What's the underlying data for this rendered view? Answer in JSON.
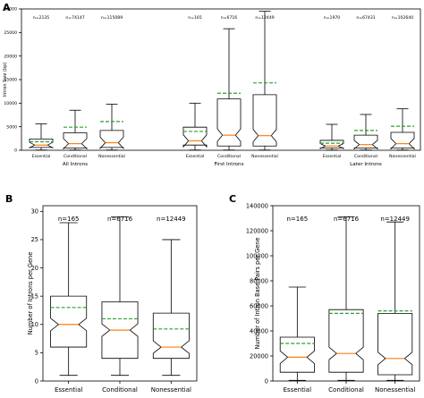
{
  "chart_data": [
    {
      "panel": "A",
      "type": "boxplot",
      "ylabel": "Intron Size (bp)",
      "ylim": [
        0,
        30000
      ],
      "yticks": [
        0,
        5000,
        10000,
        15000,
        20000,
        25000,
        30000
      ],
      "mean_color": "#2ca02c",
      "median_color": "#ff7f0e",
      "groups": [
        {
          "label": "All Introns",
          "boxes": [
            {
              "category": "Essential",
              "n": "n=2135",
              "min": 50,
              "q1": 600,
              "median": 1100,
              "q3": 2400,
              "max": 5600,
              "mean": 1800
            },
            {
              "category": "Conditional",
              "n": "n=74147",
              "min": 50,
              "q1": 500,
              "median": 1400,
              "q3": 3700,
              "max": 8500,
              "mean": 4900
            },
            {
              "category": "Nonessential",
              "n": "n=115089",
              "min": 50,
              "q1": 600,
              "median": 1600,
              "q3": 4200,
              "max": 9800,
              "mean": 6100
            }
          ]
        },
        {
          "label": "First Introns",
          "boxes": [
            {
              "category": "Essential",
              "n": "n=165",
              "min": 50,
              "q1": 1100,
              "median": 2000,
              "q3": 4900,
              "max": 10000,
              "mean": 4000
            },
            {
              "category": "Conditional",
              "n": "n=6716",
              "min": 50,
              "q1": 900,
              "median": 3200,
              "q3": 10900,
              "max": 25800,
              "mean": 12100
            },
            {
              "category": "Nonessential",
              "n": "n=12449",
              "min": 50,
              "q1": 900,
              "median": 3100,
              "q3": 11800,
              "max": 29500,
              "mean": 14300
            }
          ]
        },
        {
          "label": "Later Introns",
          "boxes": [
            {
              "category": "Essential",
              "n": "n=1970",
              "min": 50,
              "q1": 500,
              "median": 900,
              "q3": 2100,
              "max": 5500,
              "mean": 1500
            },
            {
              "category": "Conditional",
              "n": "n=67431",
              "min": 50,
              "q1": 500,
              "median": 1200,
              "q3": 3200,
              "max": 7600,
              "mean": 4200
            },
            {
              "category": "Nonessential",
              "n": "n=102640",
              "min": 50,
              "q1": 500,
              "median": 1400,
              "q3": 3800,
              "max": 8800,
              "mean": 5100
            }
          ]
        }
      ]
    },
    {
      "panel": "B",
      "type": "boxplot",
      "ylabel": "Number of Introns per Gene",
      "ylim": [
        0,
        31
      ],
      "yticks": [
        0,
        5,
        10,
        15,
        20,
        25,
        30
      ],
      "boxes": [
        {
          "category": "Essential",
          "n": "n=165",
          "min": 1,
          "q1": 6,
          "median": 10,
          "q3": 15,
          "max": 28,
          "mean": 13
        },
        {
          "category": "Conditional",
          "n": "n=6716",
          "min": 1,
          "q1": 4,
          "median": 9,
          "q3": 14,
          "max": 29,
          "mean": 11
        },
        {
          "category": "Nonessential",
          "n": "n=12449",
          "min": 1,
          "q1": 4,
          "median": 6,
          "q3": 12,
          "max": 25,
          "mean": 9.2
        }
      ]
    },
    {
      "panel": "C",
      "type": "boxplot",
      "ylabel": "Number of Intron Base Pairs per Gene",
      "ylim": [
        0,
        140000
      ],
      "yticks": [
        0,
        20000,
        40000,
        60000,
        80000,
        100000,
        120000,
        140000
      ],
      "boxes": [
        {
          "category": "Essential",
          "n": "n=165",
          "min": 500,
          "q1": 7000,
          "median": 19000,
          "q3": 35000,
          "max": 75000,
          "mean": 30000
        },
        {
          "category": "Conditional",
          "n": "n=6716",
          "min": 500,
          "q1": 7000,
          "median": 22000,
          "q3": 57000,
          "max": 131000,
          "mean": 54000
        },
        {
          "category": "Nonessential",
          "n": "n=12449",
          "min": 500,
          "q1": 5000,
          "median": 18000,
          "q3": 54000,
          "max": 127000,
          "mean": 56000
        }
      ]
    }
  ]
}
